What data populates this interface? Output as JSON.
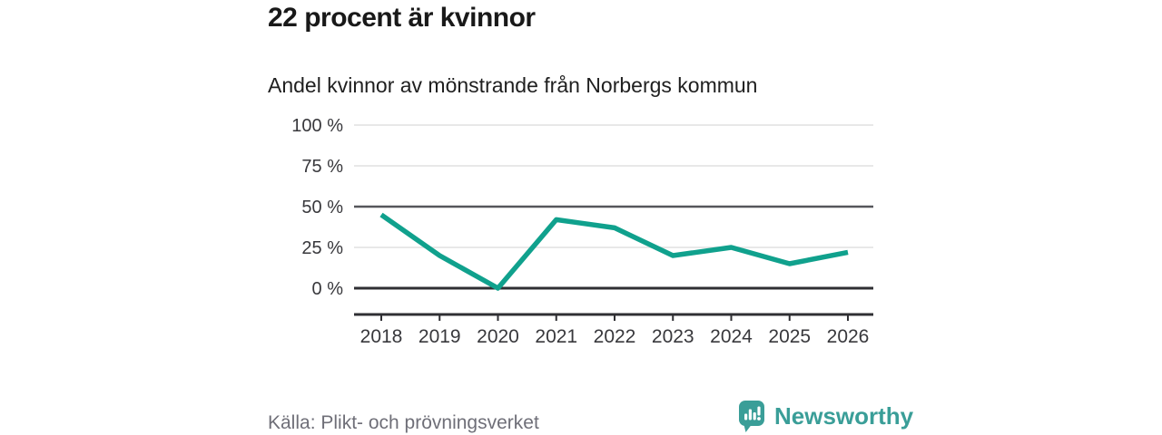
{
  "header": {
    "title": "22 procent är kvinnor",
    "subtitle": "Andel kvinnor av mönstrande från Norbergs kommun"
  },
  "chart_data": {
    "type": "line",
    "title": "22 procent är kvinnor",
    "subtitle": "Andel kvinnor av mönstrande från Norbergs kommun",
    "categories": [
      "2018",
      "2019",
      "2020",
      "2021",
      "2022",
      "2023",
      "2024",
      "2025",
      "2026"
    ],
    "values": [
      45,
      20,
      0,
      42,
      37,
      20,
      25,
      15,
      22
    ],
    "unit": "%",
    "ylim": [
      0,
      100
    ],
    "yticks": [
      0,
      25,
      50,
      75,
      100
    ],
    "ytick_label_suffix": " %",
    "grid": true,
    "legend": "none",
    "line_color": "#10a18d",
    "emphasized_gridlines": [
      0,
      50
    ]
  },
  "footer": {
    "source": "Källa: Plikt- och prövningsverket",
    "brand_name": "Newsworthy"
  },
  "colors": {
    "accent_line": "#10a18d",
    "brand_teal": "#3a9e98",
    "grid_light": "#e8e8e8",
    "grid_mid": "#55565b",
    "axis_dark": "#2f2f33",
    "tick_text": "#38383c"
  }
}
